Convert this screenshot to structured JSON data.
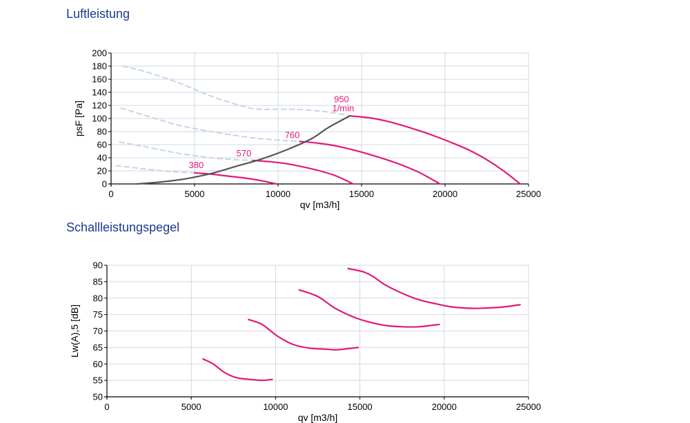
{
  "sections": {
    "air_performance_title": "Luftleistung",
    "sound_power_title": "Schallleistungspegel"
  },
  "colors": {
    "title": "#1a3a8c",
    "curve": "#e0197a",
    "system_curve": "#555555",
    "dashed": "#c8d4e6",
    "grid": "#cfd8e3",
    "axis": "#000000"
  },
  "chart_data": [
    {
      "type": "line",
      "title": "Luftleistung",
      "xlabel": "qv [m3/h]",
      "ylabel": "psF [Pa]",
      "xlim": [
        0,
        25000
      ],
      "ylim": [
        0,
        200
      ],
      "xticks": [
        0,
        5000,
        10000,
        15000,
        20000,
        25000
      ],
      "yticks": [
        0,
        20,
        40,
        60,
        80,
        100,
        120,
        140,
        160,
        180,
        200
      ],
      "grid": true,
      "speed_labels": [
        "380",
        "570",
        "760",
        "950",
        "1/min"
      ],
      "series": [
        {
          "name": "380",
          "style": "solid",
          "x": [
            5000,
            6000,
            7000,
            8000,
            9000,
            9900
          ],
          "y": [
            17,
            15,
            12,
            9,
            5,
            0
          ]
        },
        {
          "name": "570",
          "style": "solid",
          "x": [
            8500,
            9500,
            10500,
            11500,
            12500,
            13500,
            14500
          ],
          "y": [
            36,
            34,
            31,
            26,
            20,
            12,
            0
          ]
        },
        {
          "name": "760",
          "style": "solid",
          "x": [
            11300,
            12500,
            13500,
            14500,
            15500,
            16500,
            17500,
            18500,
            19700
          ],
          "y": [
            65,
            62,
            58,
            52,
            45,
            37,
            28,
            17,
            0
          ]
        },
        {
          "name": "950",
          "style": "solid",
          "x": [
            14300,
            15500,
            16500,
            17500,
            18500,
            19500,
            20500,
            21500,
            22500,
            23500,
            24500
          ],
          "y": [
            104,
            101,
            96,
            89,
            81,
            72,
            62,
            51,
            37,
            20,
            0
          ]
        },
        {
          "name": "",
          "style": "system",
          "x": [
            1500,
            3000,
            4500,
            6000,
            7500,
            9000,
            10500,
            12000,
            13000,
            14300
          ],
          "y": [
            0,
            3,
            8,
            16,
            27,
            38,
            52,
            69,
            86,
            104
          ]
        },
        {
          "name": "",
          "style": "dashed",
          "x": [
            700,
            2000,
            4000,
            6000,
            8000,
            9000,
            11000,
            13000,
            14300
          ],
          "y": [
            180,
            172,
            155,
            134,
            118,
            114,
            114,
            110,
            104
          ]
        },
        {
          "name": "",
          "style": "dashed",
          "x": [
            600,
            2000,
            4000,
            6000,
            8000,
            9500,
            11300
          ],
          "y": [
            116,
            105,
            90,
            80,
            72,
            68,
            65
          ]
        },
        {
          "name": "",
          "style": "dashed",
          "x": [
            500,
            2000,
            4000,
            6000,
            7500,
            8500
          ],
          "y": [
            64,
            57,
            47,
            40,
            37,
            36
          ]
        },
        {
          "name": "",
          "style": "dashed",
          "x": [
            300,
            2000,
            3500,
            5000
          ],
          "y": [
            28,
            23,
            19,
            17
          ]
        }
      ]
    },
    {
      "type": "line",
      "title": "Schallleistungspegel",
      "xlabel": "qv [m3/h]",
      "ylabel": "Lw(A),5 [dB]",
      "xlim": [
        0,
        25000
      ],
      "ylim": [
        50,
        90
      ],
      "xticks": [
        0,
        5000,
        10000,
        15000,
        20000,
        25000
      ],
      "yticks": [
        50,
        55,
        60,
        65,
        70,
        75,
        80,
        85,
        90
      ],
      "grid": true,
      "series": [
        {
          "name": "",
          "style": "solid",
          "x": [
            5700,
            6300,
            7000,
            7700,
            8500,
            9200,
            9800
          ],
          "y": [
            61.5,
            60,
            57.3,
            55.8,
            55.3,
            55,
            55.3
          ]
        },
        {
          "name": "",
          "style": "solid",
          "x": [
            8400,
            9200,
            10100,
            11000,
            12000,
            13000,
            13600,
            14400,
            14900
          ],
          "y": [
            73.5,
            72,
            68.5,
            66,
            64.8,
            64.5,
            64.3,
            64.7,
            65
          ]
        },
        {
          "name": "",
          "style": "solid",
          "x": [
            11400,
            12500,
            13500,
            14600,
            15500,
            16500,
            17500,
            18500,
            19700
          ],
          "y": [
            82.5,
            80.5,
            77,
            74.3,
            72.8,
            71.7,
            71.3,
            71.3,
            72
          ]
        },
        {
          "name": "",
          "style": "solid",
          "x": [
            14300,
            15200,
            15800,
            16500,
            17500,
            18500,
            19500,
            20500,
            21700,
            22500,
            23500,
            24500
          ],
          "y": [
            89,
            88,
            86.5,
            84,
            81.5,
            79.5,
            78.3,
            77.3,
            76.9,
            77,
            77.3,
            78
          ]
        }
      ]
    }
  ]
}
